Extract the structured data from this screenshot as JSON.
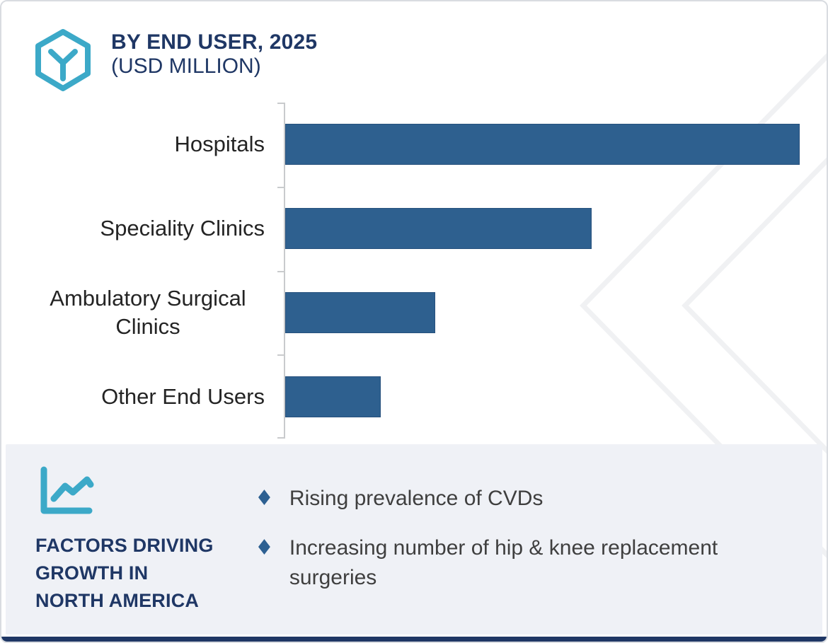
{
  "header": {
    "title_line1": "BY END USER, 2025",
    "title_line2": "(USD MILLION)",
    "logo_icon": "hexagon-y-logo"
  },
  "chart_data": {
    "type": "bar",
    "orientation": "horizontal",
    "title": "BY END USER, 2025 (USD MILLION)",
    "unit": "USD Million",
    "categories": [
      "Hospitals",
      "Speciality Clinics",
      "Ambulatory Surgical Clinics",
      "Other End Users"
    ],
    "values": [
      100,
      59.5,
      29.2,
      18.6
    ],
    "xlim": [
      0,
      105
    ],
    "grid": false,
    "value_labels_shown": false,
    "axis_labels_shown": false,
    "legend": "none",
    "bar_color": "#2e608f"
  },
  "footer": {
    "icon": "line-chart-icon",
    "heading_lines": [
      "FACTORS DRIVING",
      "GROWTH IN",
      "NORTH AMERICA"
    ],
    "bullet_glyph": "♦",
    "bullets": [
      "Rising prevalence of CVDs",
      "Increasing number of hip & knee replacement surgeries"
    ]
  },
  "colors": {
    "navy": "#1f3765",
    "teal": "#3ca9c8",
    "bar": "#2e608f",
    "barborder": "#27517d",
    "bullet": "#2d6092",
    "panel": "#eff1f6",
    "text": "#3f3f3f",
    "label": "#242424",
    "axis": "#c9cbcd",
    "watermark": "#f0f1f3",
    "border": "#d9dce1"
  }
}
